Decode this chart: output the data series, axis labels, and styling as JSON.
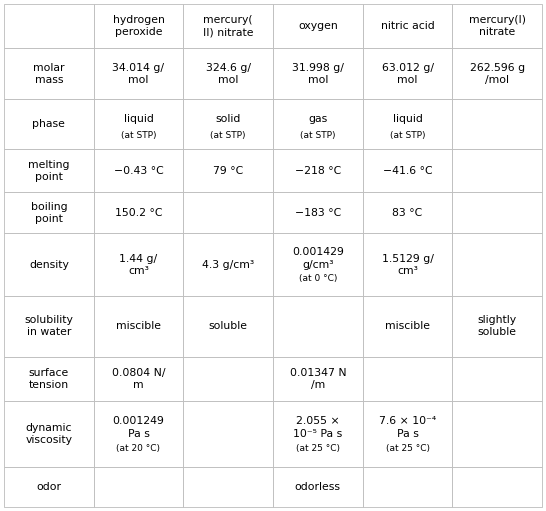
{
  "col_headers": [
    "",
    "hydrogen\nperoxide",
    "mercury(\nII) nitrate",
    "oxygen",
    "nitric acid",
    "mercury(I)\nnitrate"
  ],
  "row_headers": [
    "molar\nmass",
    "phase",
    "melting\npoint",
    "boiling\npoint",
    "density",
    "solubility\nin water",
    "surface\ntension",
    "dynamic\nviscosity",
    "odor"
  ],
  "cells": [
    [
      "34.014 g/\nmol",
      "324.6 g/\nmol",
      "31.998 g/\nmol",
      "63.012 g/\nmol",
      "262.596 g\n/mol"
    ],
    [
      "liquid\n(at STP)",
      "solid\n(at STP)",
      "gas\n(at STP)",
      "liquid\n (at STP)",
      ""
    ],
    [
      "−0.43 °C",
      "79 °C",
      "−218 °C",
      "−41.6 °C",
      ""
    ],
    [
      "150.2 °C",
      "",
      "−183 °C",
      "83 °C",
      ""
    ],
    [
      "1.44 g/\ncm³",
      "4.3 g/cm³",
      "0.001429\ng/cm³\n(at 0 °C)",
      "1.5129 g/\ncm³",
      ""
    ],
    [
      "miscible",
      "soluble",
      "",
      "miscible",
      "slightly\nsoluble"
    ],
    [
      "0.0804 N/\nm",
      "",
      "0.01347 N\n/m",
      "",
      ""
    ],
    [
      "0.001249\nPa s\n(at 20 °C)",
      "",
      "2.055 ×\n10⁻⁵ Pa s\n(at 25 °C)",
      "7.6 × 10⁻⁴\nPa s\n(at 25 °C)",
      ""
    ],
    [
      "",
      "",
      "odorless",
      "",
      ""
    ]
  ],
  "bg_color": "#ffffff",
  "line_color": "#bbbbbb",
  "text_color": "#000000",
  "fontsize": 7.8,
  "small_fontsize": 6.5,
  "figwidth": 5.46,
  "figheight": 5.11,
  "dpi": 100
}
